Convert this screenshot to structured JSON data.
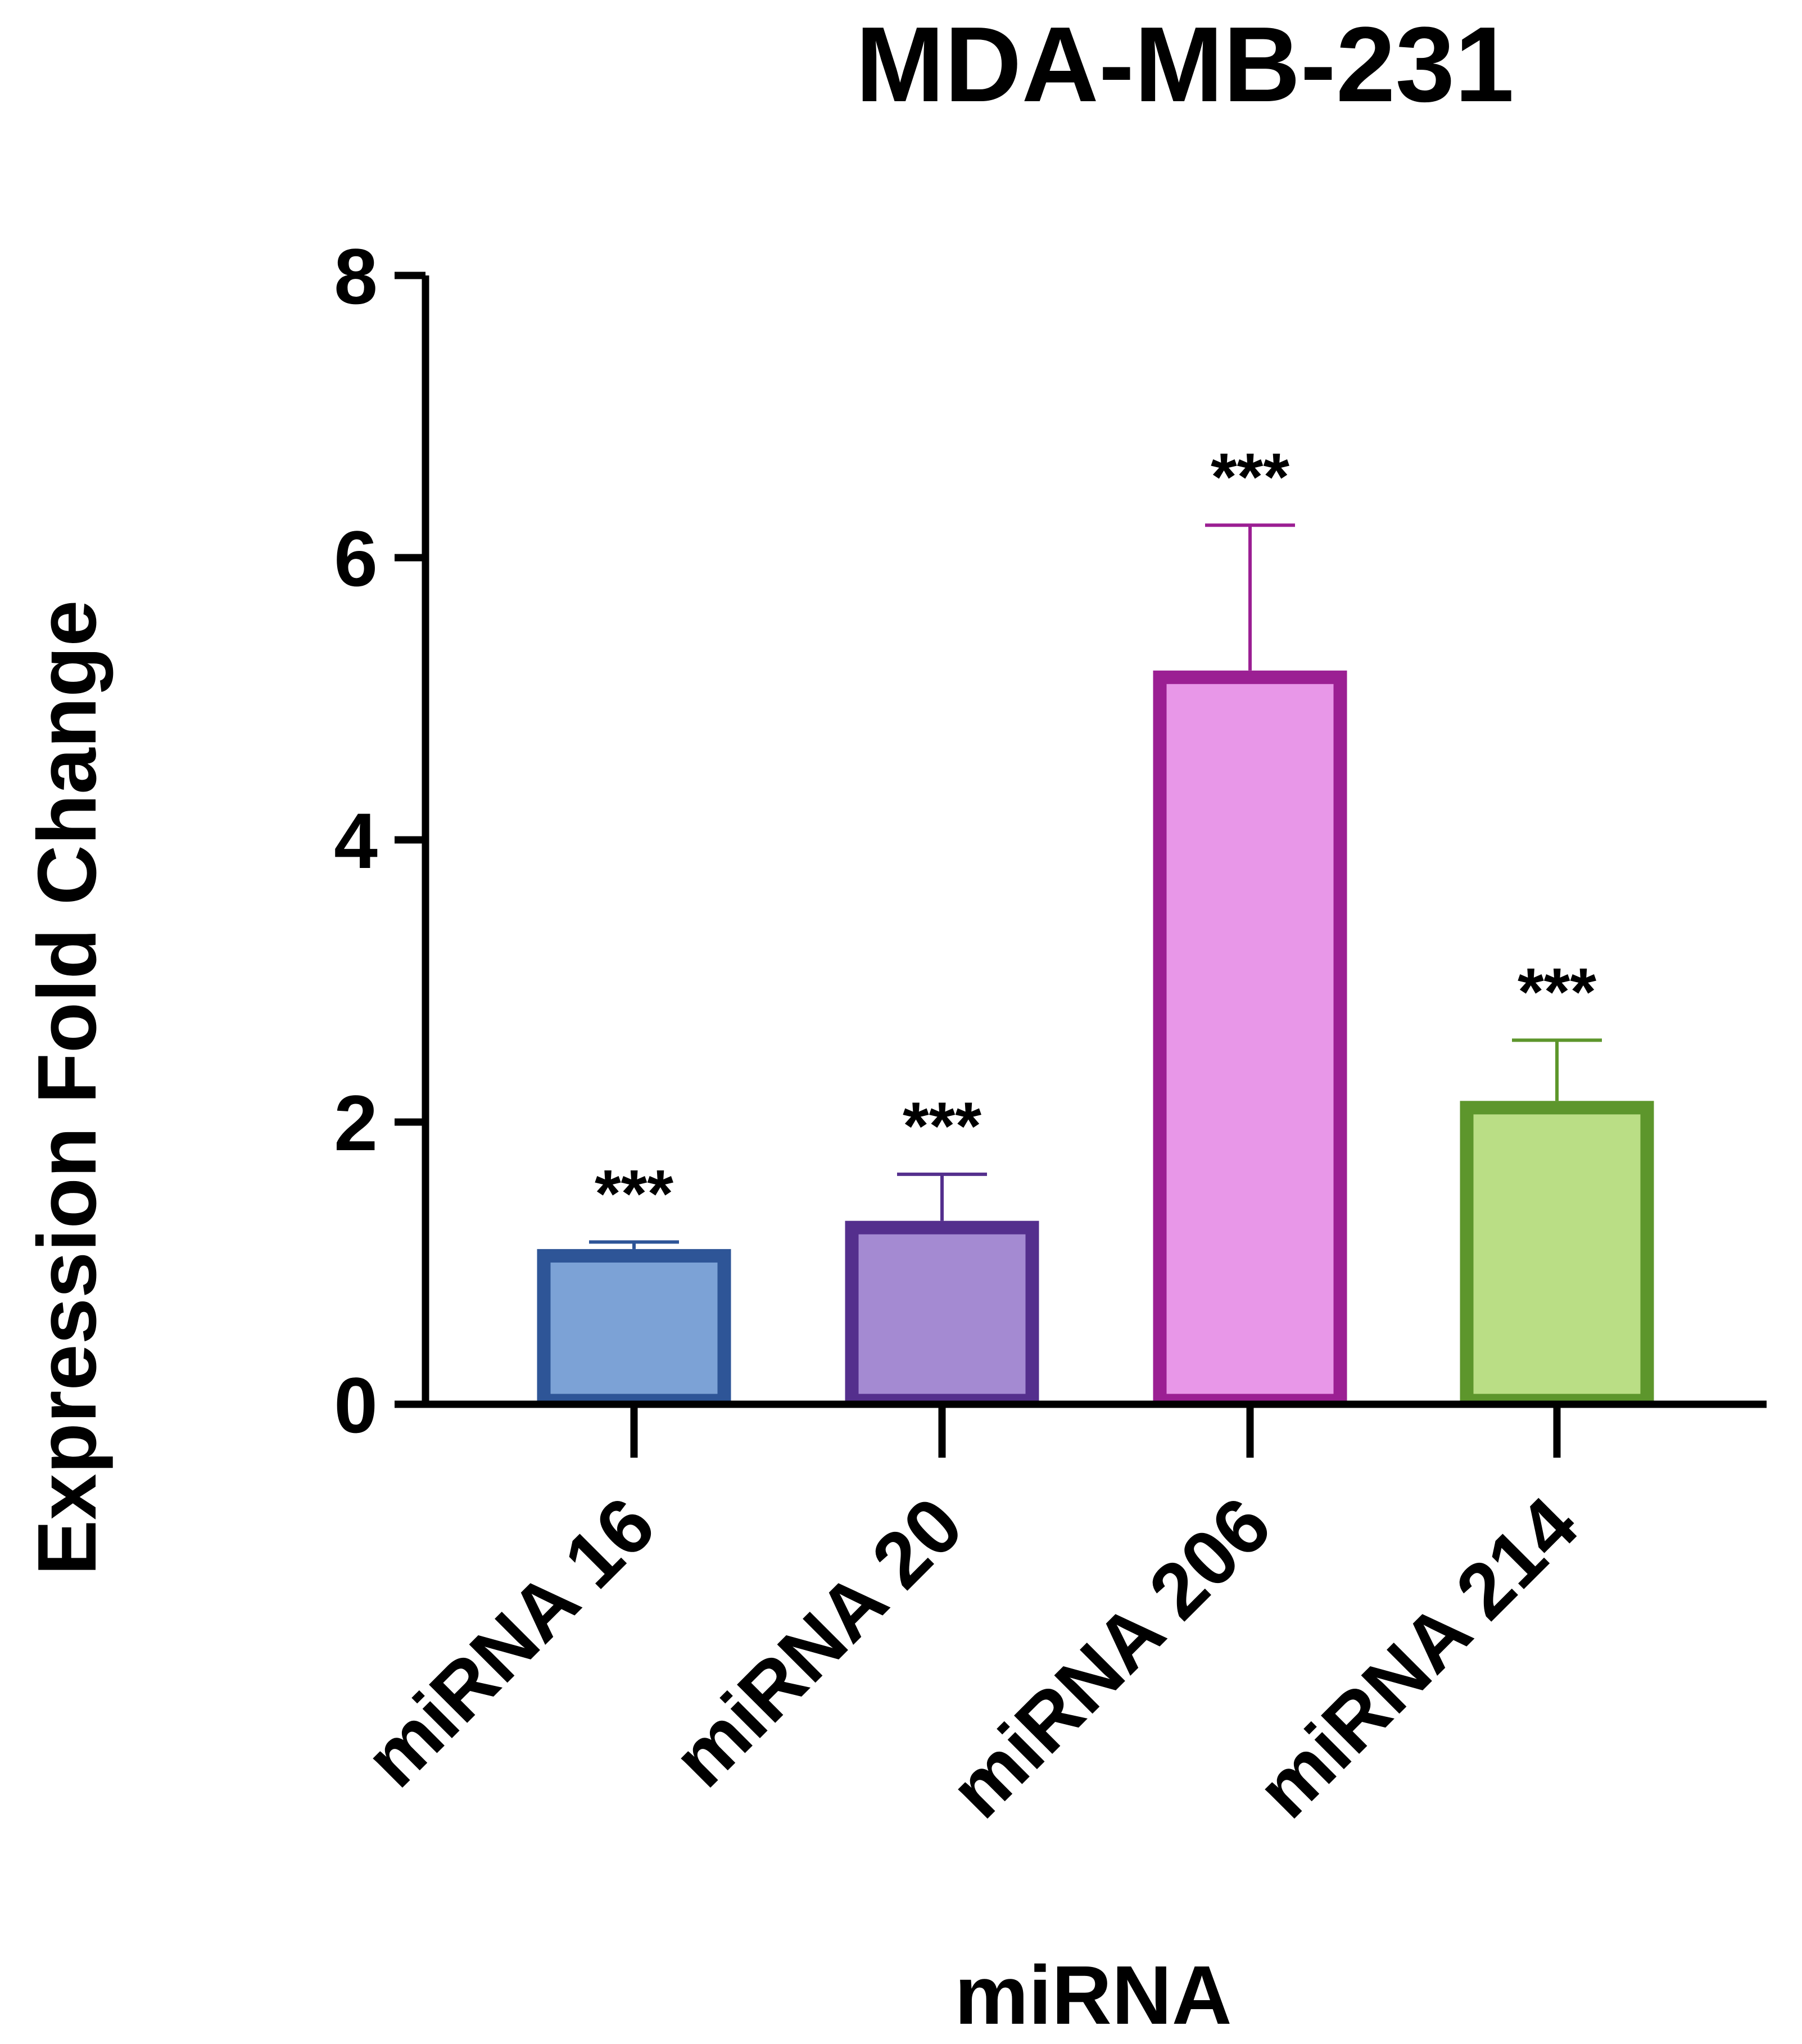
{
  "chart_data": {
    "type": "bar",
    "title": "MDA-MB-231",
    "xlabel": "miRNA",
    "ylabel": "Expression Fold Change",
    "categories": [
      "miRNA 16",
      "miRNA 20",
      "miRNA 206",
      "miRNA 214"
    ],
    "values": [
      1.1,
      1.3,
      5.2,
      2.15
    ],
    "error_upper": [
      0.05,
      0.33,
      1.03,
      0.43
    ],
    "significance": [
      "***",
      "***",
      "***",
      "***"
    ],
    "ylim": [
      0,
      8
    ],
    "yticks": [
      "0",
      "2",
      "4",
      "6",
      "8"
    ],
    "grid": false,
    "legend": "none",
    "colors": {
      "fill": [
        "#7ca2d6",
        "#a48ad2",
        "#e897e8",
        "#bade85"
      ],
      "edge": [
        "#2e5597",
        "#542f8d",
        "#9b1f93",
        "#5d962c"
      ],
      "axis": "#000000"
    }
  }
}
